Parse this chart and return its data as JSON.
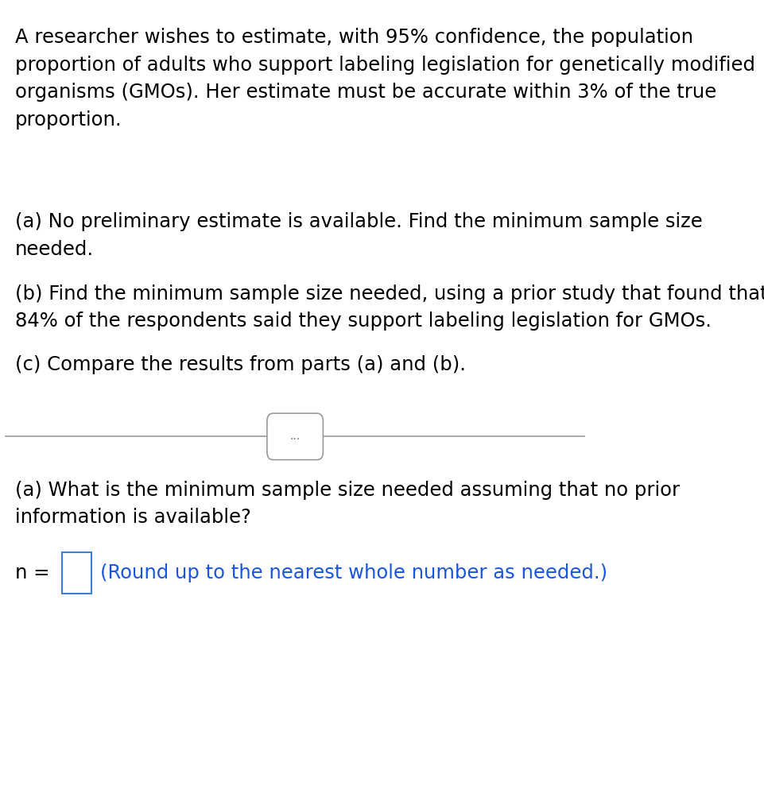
{
  "background_color": "#ffffff",
  "paragraph1": "A researcher wishes to estimate, with 95% confidence, the population\nproportion of adults who support labeling legislation for genetically modified\norganisms (GMOs). Her estimate must be accurate within 3% of the true\nproportion.",
  "paragraph2_a": "(a) No preliminary estimate is available. Find the minimum sample size\nneeded.",
  "paragraph2_b": "(b) Find the minimum sample size needed, using a prior study that found that\n84% of the respondents said they support labeling legislation for GMOs.",
  "paragraph2_c": "(c) Compare the results from parts (a) and (b).",
  "divider_dots": "...",
  "question_text": "(a) What is the minimum sample size needed assuming that no prior\ninformation is available?",
  "answer_label": "n = ",
  "answer_hint": "(Round up to the nearest whole number as needed.)",
  "text_color_black": "#000000",
  "text_color_blue": "#1a56db",
  "box_border_color": "#3a7fd5",
  "divider_color": "#999999",
  "font_size_main": 17.5
}
